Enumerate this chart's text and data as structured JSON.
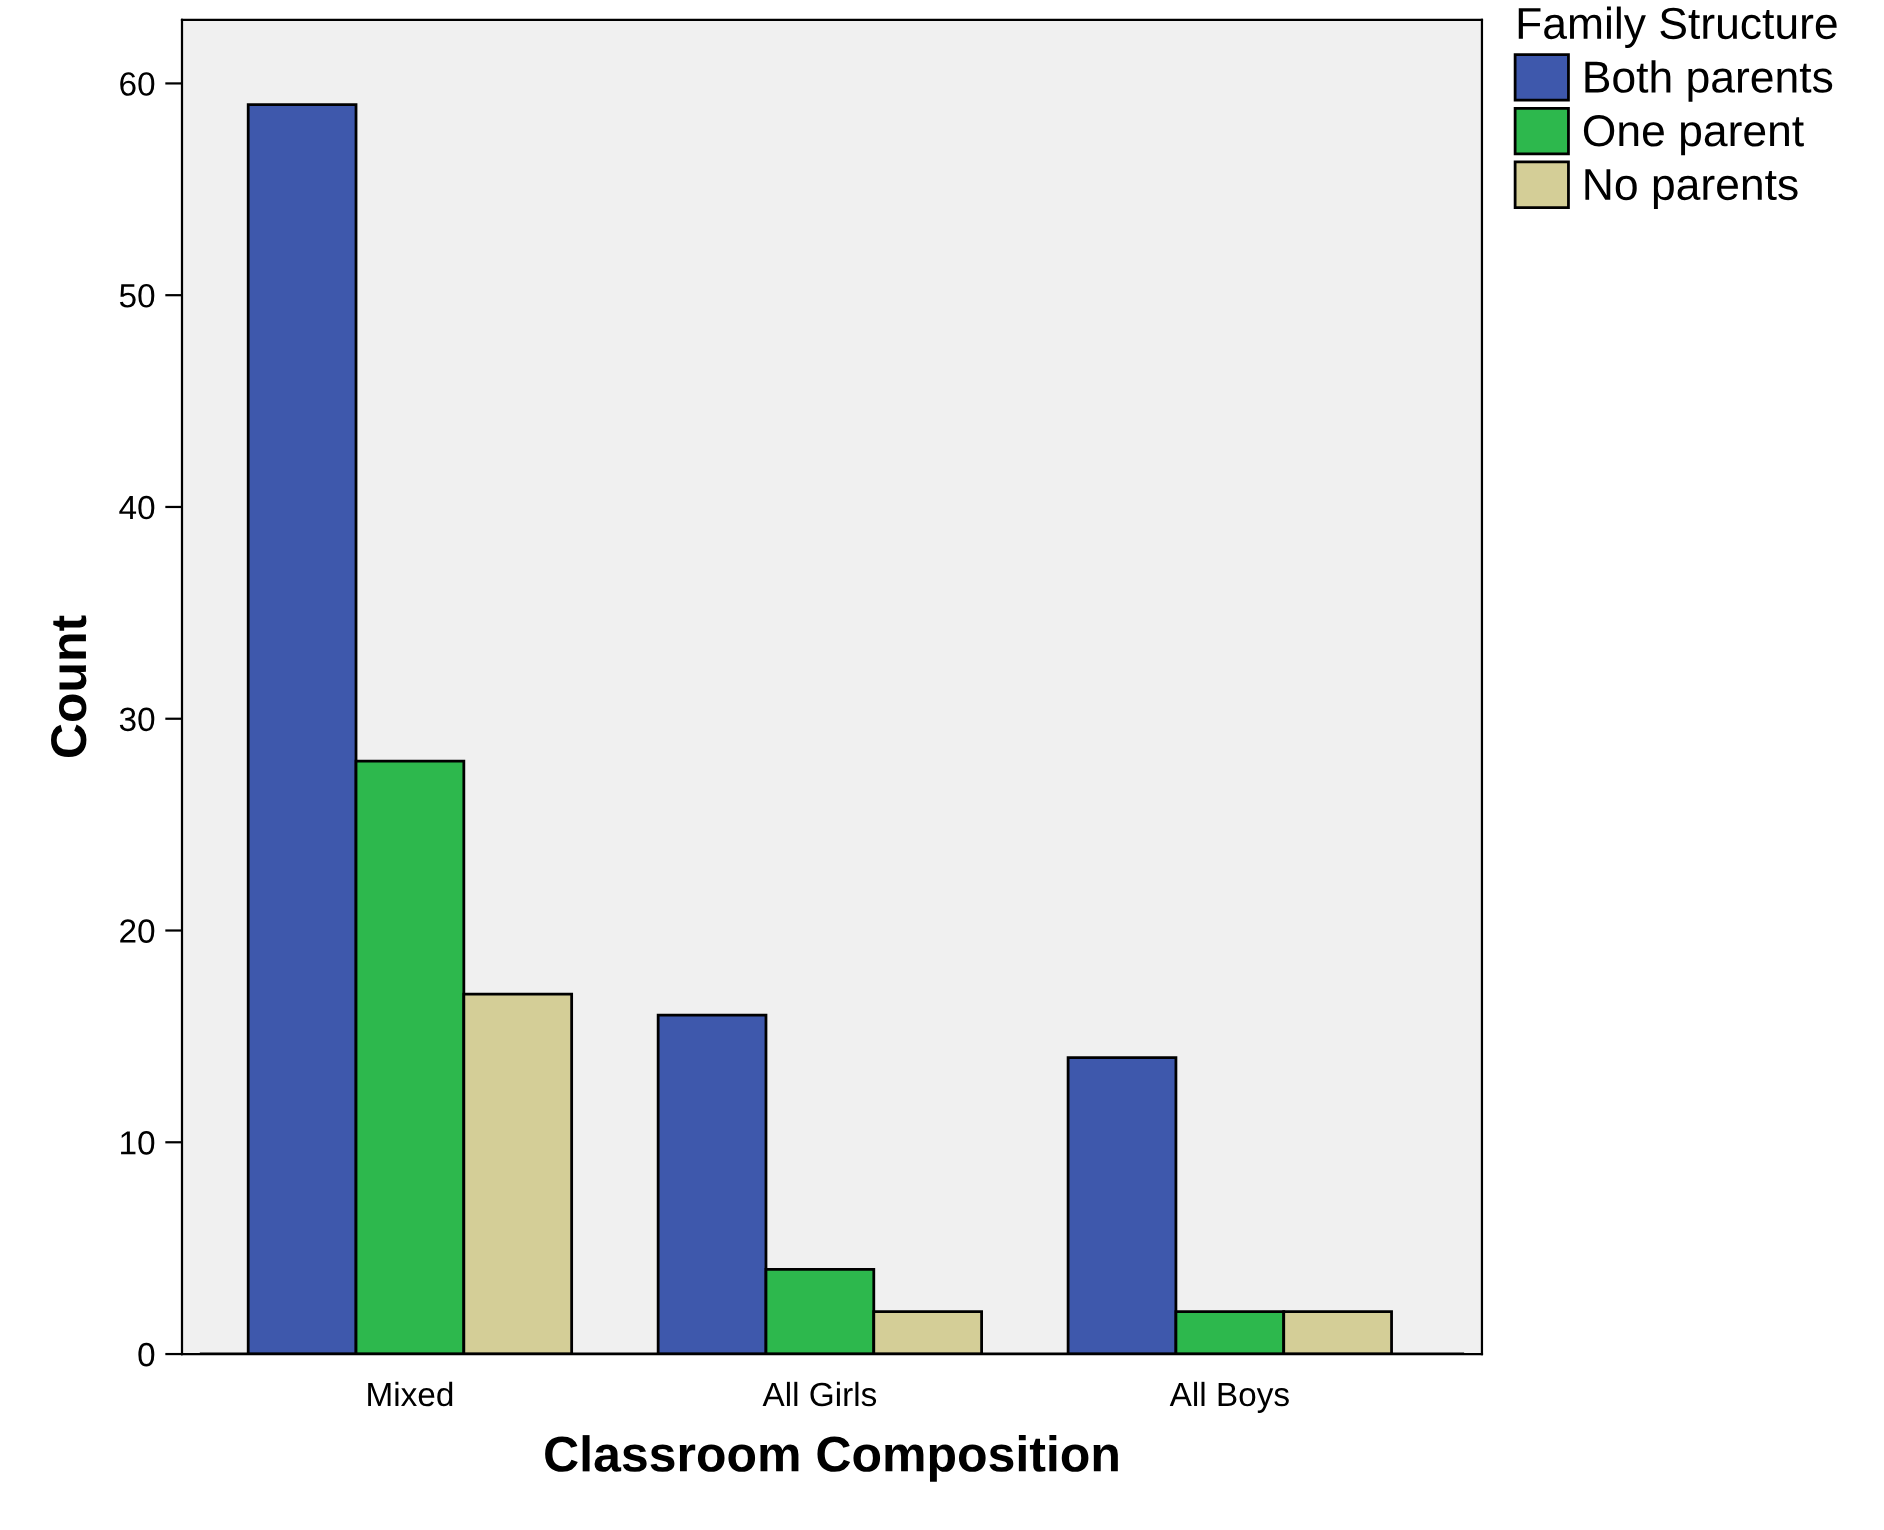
{
  "chart_data": {
    "type": "bar",
    "xlabel": "Classroom Composition",
    "ylabel": "Count",
    "legend_title": "Family Structure",
    "categories": [
      "Mixed",
      "All Girls",
      "All Boys"
    ],
    "series": [
      {
        "name": "Both parents",
        "color": "#3e58ac",
        "values": [
          59,
          16,
          14
        ]
      },
      {
        "name": "One parent",
        "color": "#2db84d",
        "values": [
          28,
          4,
          2
        ]
      },
      {
        "name": "No parents",
        "color": "#d4ce97",
        "values": [
          17,
          2,
          2
        ]
      }
    ],
    "ylim": [
      0,
      63
    ],
    "yticks": [
      0,
      10,
      20,
      30,
      40,
      50,
      60
    ],
    "grid": false,
    "legend": "top right"
  }
}
